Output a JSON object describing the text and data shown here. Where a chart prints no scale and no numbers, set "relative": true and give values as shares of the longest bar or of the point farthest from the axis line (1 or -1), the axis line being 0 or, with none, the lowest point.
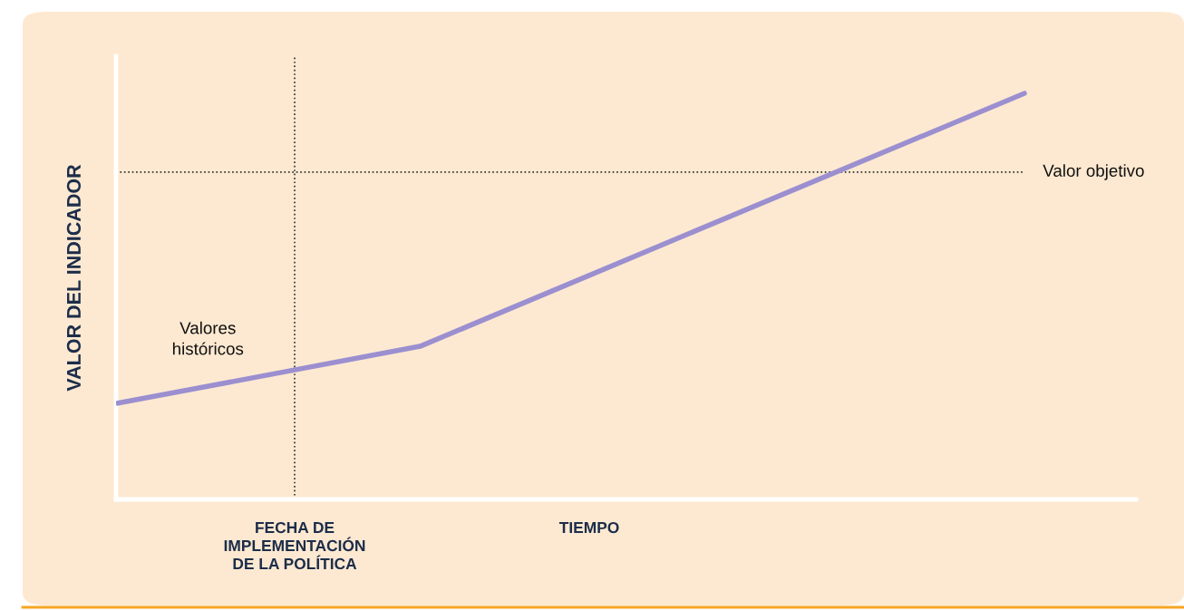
{
  "chart_data": {
    "type": "line",
    "relative": true,
    "ylabel": "VALOR DEL INDICADOR",
    "xlabel": "TIEMPO",
    "categories": [
      null,
      null,
      null,
      null
    ],
    "legend": false,
    "marker": "none",
    "line_style": "solid",
    "series": [
      {
        "color": "#9b8fd0",
        "values": [
          0.237,
          0.377,
          0.689,
          1
        ]
      }
    ],
    "ref_lines": [
      {
        "axis": "y",
        "value": 0.806,
        "label": "Valor objetivo",
        "line_style": "dotted",
        "color": "#333333"
      }
    ],
    "annotations": [
      "Valores\nhistóricos",
      "FECHA DE\nIMPLEMENTACIÓN\nDE LA POLÍTICA"
    ]
  }
}
